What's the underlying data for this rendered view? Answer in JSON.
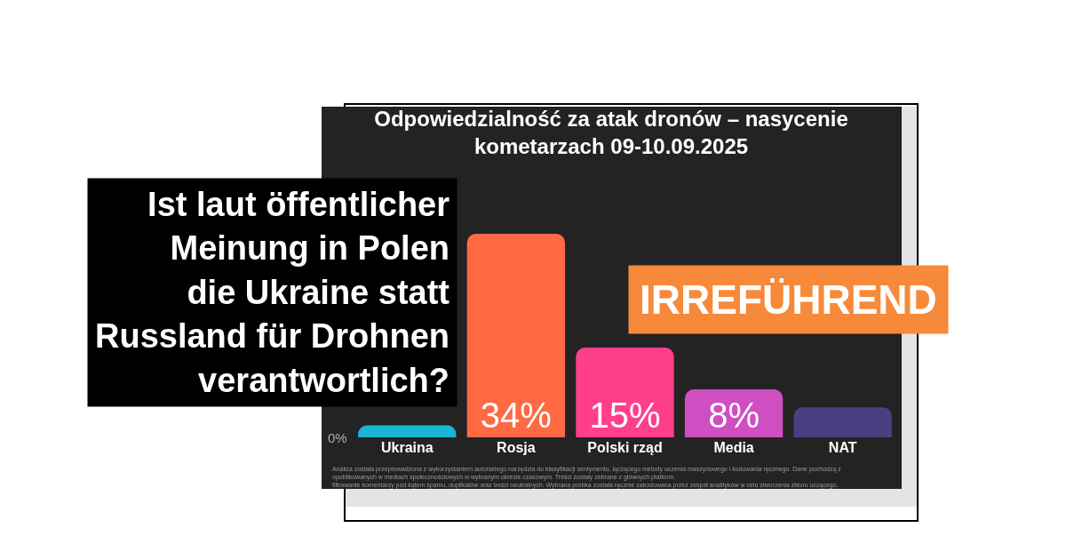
{
  "chart_data": {
    "type": "bar",
    "title": "Odpowiedzialność za atak dronów – nasycenie\nkometarzach 09-10.09.2025",
    "categories": [
      "Ukraina",
      "Rosja",
      "Polski rząd",
      "Media",
      "NAT"
    ],
    "values": [
      2,
      34,
      15,
      8,
      5
    ],
    "value_labels": [
      null,
      "34%",
      "15%",
      "8%",
      null
    ],
    "colors": [
      "#1bb4d8",
      "#ff6a45",
      "#ff3f8c",
      "#cf4fc2",
      "#4b3f82"
    ],
    "annotations": [
      "Ist laut öffentlicher\nMeinung in Polen\ndie Ukraine statt\nRussland für Drohnen\nverantwortlich?",
      "IRREFÜHREND",
      "0%",
      "Analiza została przeprowadzona z wykorzystaniem autorskiego narzędzia do klasyfikacji sentymentu, łączącego metody uczenia maszynowego i kodowania ręcznego. Dane pochodzą z\nopublikowanych w mediach społecznościowych w wybranym okresie czasowym. Treści zostały zebrane z głównych platform.\nfiltrowanie komentarzy pod kątem spamu, duplikatów oraz treści neutralnych. Wybrana próbka została ręcznie zakodowana przez zespół analityków w celu stworzenia zbioru uczącego."
    ]
  }
}
